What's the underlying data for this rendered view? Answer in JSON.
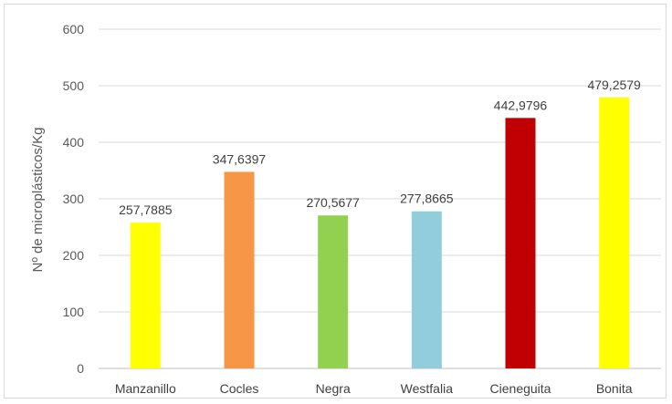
{
  "chart_data": {
    "type": "bar",
    "title": "",
    "xlabel": "",
    "ylabel": "Nº de microplásticos/Kg",
    "ylim": [
      0,
      600
    ],
    "yticks": [
      0,
      100,
      200,
      300,
      400,
      500,
      600
    ],
    "grid": true,
    "legend": "none",
    "categories": [
      "Manzanillo",
      "Cocles",
      "Negra",
      "Westfalia",
      "Cieneguita",
      "Bonita"
    ],
    "values": [
      257.7885,
      347.6397,
      270.5677,
      277.8665,
      442.9796,
      479.2579
    ],
    "value_labels": [
      "257,7885",
      "347,6397",
      "270,5677",
      "277,8665",
      "442,9796",
      "479,2579"
    ],
    "colors": [
      "#FFFF00",
      "#F79646",
      "#92D050",
      "#92CDDC",
      "#C00000",
      "#FFFF00"
    ]
  }
}
